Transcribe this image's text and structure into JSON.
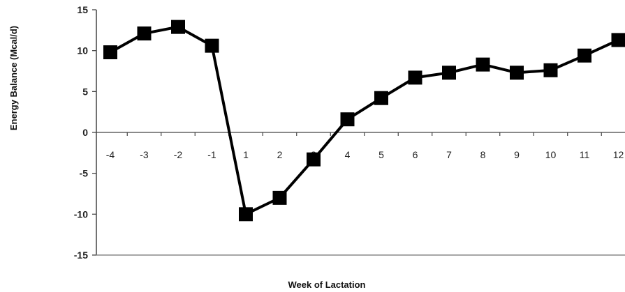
{
  "chart_data": {
    "type": "line",
    "xlabel": "Week of Lactation",
    "ylabel": "Energy Balance (Mcal/d)",
    "categories": [
      "-4",
      "-3",
      "-2",
      "-1",
      "1",
      "2",
      "3",
      "4",
      "5",
      "6",
      "7",
      "8",
      "9",
      "10",
      "11",
      "12"
    ],
    "series": [
      {
        "values": [
          9.8,
          12.1,
          12.9,
          10.6,
          -10.0,
          -8.0,
          -3.3,
          1.6,
          4.2,
          6.7,
          7.3,
          8.3,
          7.3,
          7.6,
          9.4,
          11.3
        ]
      }
    ],
    "ylim": [
      -15,
      15
    ],
    "yticks": [
      "15",
      "10",
      "5",
      "0",
      "-5",
      "-10",
      "-15"
    ],
    "marker": "square",
    "line_color": "#000000",
    "legend": "none",
    "grid": false
  }
}
